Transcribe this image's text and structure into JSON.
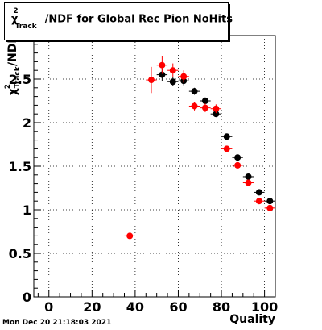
{
  "chart_data": {
    "type": "scatter",
    "title_parts": {
      "chi": "χ",
      "sup": "2",
      "sub": "Track",
      "rest": "/NDF for Global Rec Pion NoHits"
    },
    "xlabel": "Quality",
    "ylabel_parts": {
      "chi": "χ",
      "sup": "2",
      "sub": "Track",
      "rest": "/NDF"
    },
    "xlim": [
      -7,
      105
    ],
    "ylim": [
      0,
      3
    ],
    "xticks": [
      0,
      20,
      40,
      60,
      80,
      100
    ],
    "yticks": [
      0,
      0.5,
      1,
      1.5,
      2,
      2.5
    ],
    "ytick_labels": [
      "0",
      "0.5",
      "1",
      "1.5",
      "2",
      "2.5"
    ],
    "grid": true,
    "series": [
      {
        "color": "#000000",
        "points": [
          {
            "x": 52.5,
            "y": 2.55,
            "ey": 0.07
          },
          {
            "x": 57.5,
            "y": 2.47,
            "ey": 0.05
          },
          {
            "x": 62.5,
            "y": 2.48,
            "ey": 0.05
          },
          {
            "x": 67.5,
            "y": 2.36,
            "ey": 0.04
          },
          {
            "x": 72.5,
            "y": 2.25,
            "ey": 0.04
          },
          {
            "x": 77.5,
            "y": 2.1,
            "ey": 0.03
          },
          {
            "x": 82.5,
            "y": 1.84,
            "ey": 0.02
          },
          {
            "x": 87.5,
            "y": 1.6,
            "ey": 0.02
          },
          {
            "x": 92.5,
            "y": 1.38,
            "ey": 0.02
          },
          {
            "x": 97.5,
            "y": 1.2,
            "ey": 0.01
          },
          {
            "x": 102.5,
            "y": 1.1,
            "ey": 0.01
          }
        ]
      },
      {
        "color": "#ff0000",
        "points": [
          {
            "x": 37.5,
            "y": 0.7,
            "ey": 0.02
          },
          {
            "x": 47.5,
            "y": 2.49,
            "ey": 0.15
          },
          {
            "x": 52.5,
            "y": 2.66,
            "ey": 0.1
          },
          {
            "x": 57.5,
            "y": 2.6,
            "ey": 0.08
          },
          {
            "x": 62.5,
            "y": 2.53,
            "ey": 0.07
          },
          {
            "x": 67.5,
            "y": 2.19,
            "ey": 0.05
          },
          {
            "x": 72.5,
            "y": 2.17,
            "ey": 0.05
          },
          {
            "x": 77.5,
            "y": 2.16,
            "ey": 0.05
          },
          {
            "x": 82.5,
            "y": 1.7,
            "ey": 0.03
          },
          {
            "x": 87.5,
            "y": 1.51,
            "ey": 0.02
          },
          {
            "x": 92.5,
            "y": 1.31,
            "ey": 0.02
          },
          {
            "x": 97.5,
            "y": 1.1,
            "ey": 0.02
          },
          {
            "x": 102.5,
            "y": 1.02,
            "ey": 0.02
          }
        ]
      }
    ]
  },
  "footer": {
    "timestamp": "Mon Dec 20 21:18:03 2021"
  }
}
